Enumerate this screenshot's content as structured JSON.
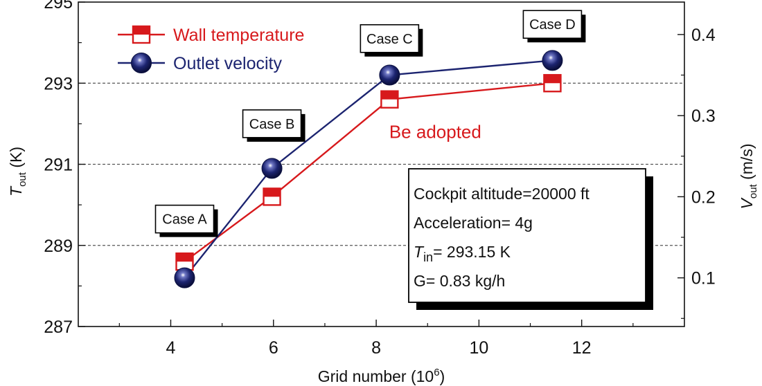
{
  "chart_data": {
    "type": "line",
    "xlabel": "Grid number (10",
    "xlabel_sup": "6",
    "xlabel_close": ")",
    "ylabel_left": {
      "main": "T",
      "sub": "out",
      "unit": " (K)"
    },
    "ylabel_right": {
      "main": "V",
      "sub": "out",
      "unit": " (m/s)"
    },
    "xlim": [
      2.2,
      14.0
    ],
    "ylim_left": [
      287,
      295
    ],
    "ylim_right": [
      0.04,
      0.44
    ],
    "x_ticks": [
      4,
      6,
      8,
      10,
      12
    ],
    "x_tick_labels": [
      "4",
      "6",
      "8",
      "10",
      "12"
    ],
    "x_minor_ticks": [
      3,
      5,
      7,
      9,
      11,
      13
    ],
    "y_left_ticks": [
      287,
      289,
      291,
      293,
      295
    ],
    "y_left_tick_labels": [
      "287",
      "289",
      "291",
      "293",
      "295"
    ],
    "y_left_minor_ticks": [
      288,
      290,
      292,
      294
    ],
    "y_right_ticks": [
      0.1,
      0.2,
      0.3,
      0.4
    ],
    "y_right_tick_labels": [
      "0.1",
      "0.2",
      "0.3",
      "0.4"
    ],
    "y_right_minor_ticks": [
      0.05,
      0.15,
      0.25,
      0.35
    ],
    "gridlines_y_left": [
      289,
      291,
      293
    ],
    "series": [
      {
        "name": "Wall temperature",
        "axis": "left",
        "marker": "half-filled-square",
        "color": "#d7191c",
        "x": [
          4.27,
          5.97,
          8.26,
          11.43
        ],
        "values": [
          288.6,
          290.2,
          292.6,
          293.0
        ]
      },
      {
        "name": "Outlet velocity",
        "axis": "right",
        "marker": "sphere",
        "color": "#1c2470",
        "x": [
          4.27,
          5.97,
          8.26,
          11.43
        ],
        "values": [
          0.1,
          0.235,
          0.35,
          0.368
        ]
      }
    ],
    "case_labels": [
      {
        "text": "Case A",
        "x": 4.27,
        "y_left": 289.65
      },
      {
        "text": "Case B",
        "x": 5.97,
        "y_left": 292.0
      },
      {
        "text": "Case C",
        "x": 8.26,
        "y_left": 294.1
      },
      {
        "text": "Case D",
        "x": 11.43,
        "y_left": 294.45
      }
    ],
    "adopted_note": {
      "text": "Be adopted",
      "x": 9.15,
      "y_left": 291.8,
      "color": "#d7191c"
    },
    "info_box": {
      "lines": [
        {
          "main": "Cockpit altitude=20000 ft"
        },
        {
          "main": "Acceleration= 4g"
        },
        {
          "main": "T",
          "sub": "in",
          "rest": "= 293.15 K"
        },
        {
          "main": "G= 0.83 kg/h"
        }
      ]
    },
    "legend_position": "top-left"
  }
}
